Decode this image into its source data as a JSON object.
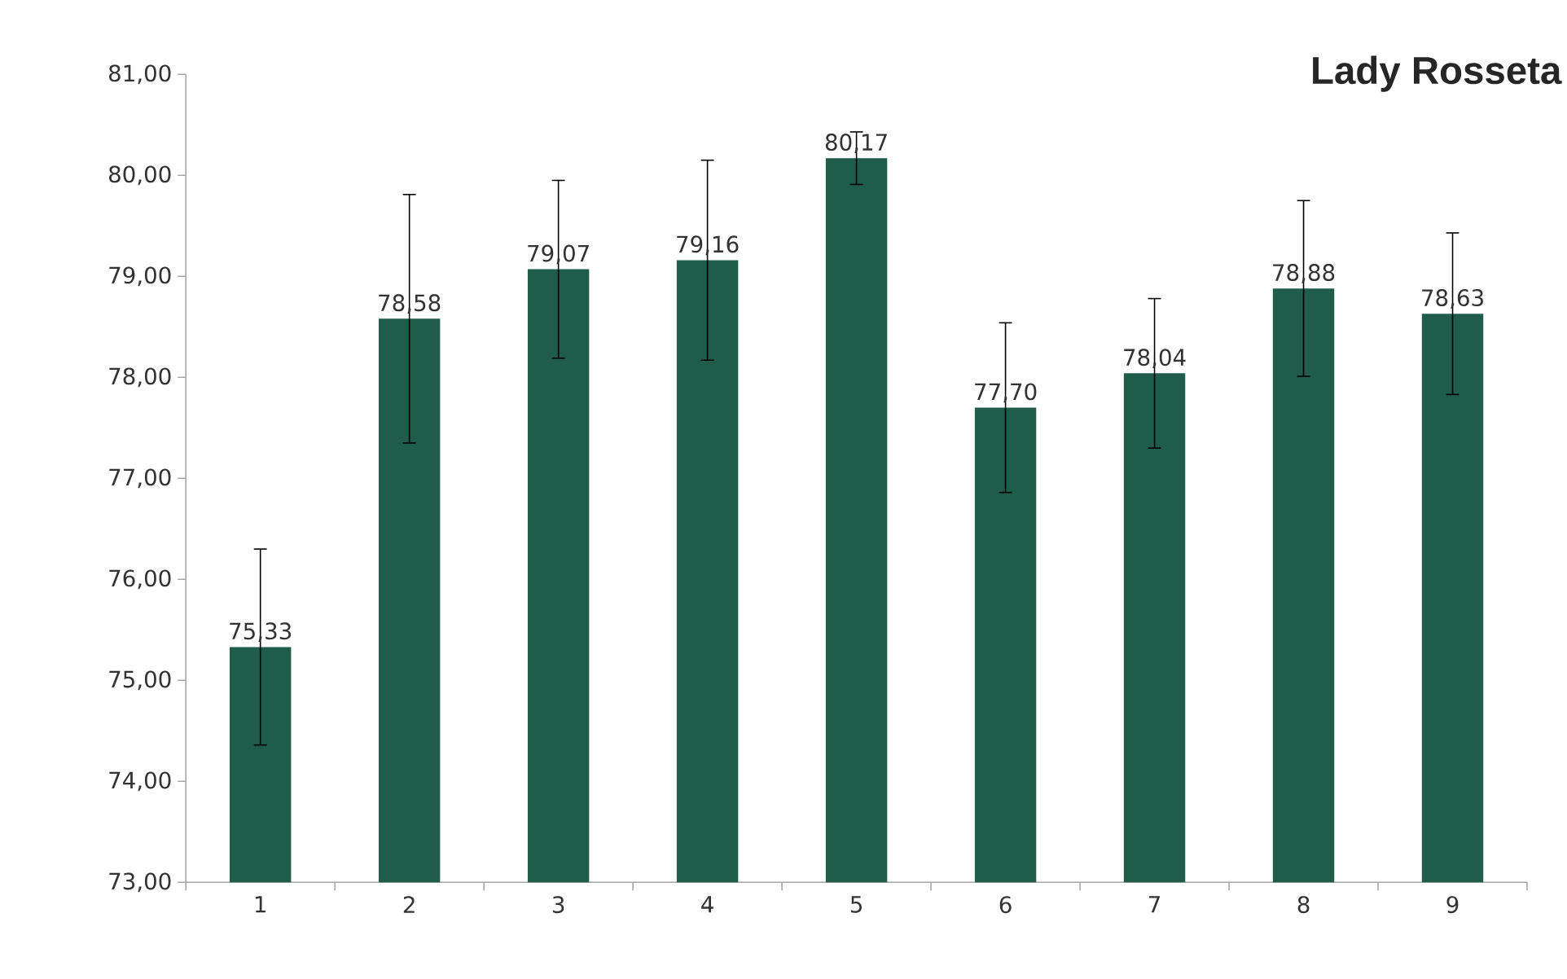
{
  "chart_data": {
    "type": "bar",
    "title": "Lady Rosseta",
    "categories": [
      "1",
      "2",
      "3",
      "4",
      "5",
      "6",
      "7",
      "8",
      "9"
    ],
    "values": [
      75.33,
      78.58,
      79.07,
      79.16,
      80.17,
      77.7,
      78.04,
      78.88,
      78.63
    ],
    "value_labels": [
      "75,33",
      "78,58",
      "79,07",
      "79,16",
      "80,17",
      "77,70",
      "78,04",
      "78,88",
      "78,63"
    ],
    "errors": [
      0.97,
      1.23,
      0.88,
      0.99,
      0.26,
      0.84,
      0.74,
      0.87,
      0.8
    ],
    "color": "#1f5c4a",
    "ylim": [
      73,
      81
    ],
    "yticks": [
      {
        "value": 73,
        "label": "73,00"
      },
      {
        "value": 74,
        "label": "74,00"
      },
      {
        "value": 75,
        "label": "75,00"
      },
      {
        "value": 76,
        "label": "76,00"
      },
      {
        "value": 77,
        "label": "77,00"
      },
      {
        "value": 78,
        "label": "78,00"
      },
      {
        "value": 79,
        "label": "79,00"
      },
      {
        "value": 80,
        "label": "80,00"
      },
      {
        "value": 81,
        "label": "81,00"
      }
    ],
    "grid": false
  }
}
